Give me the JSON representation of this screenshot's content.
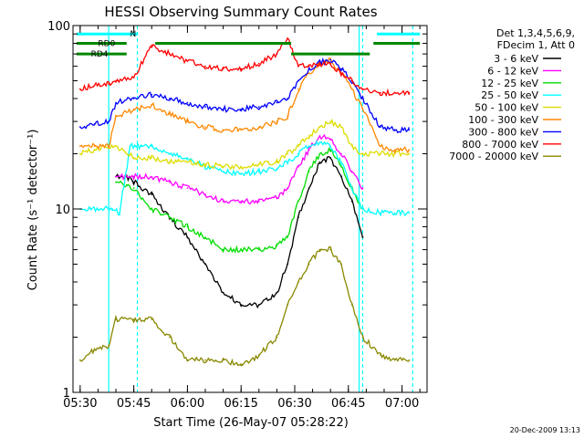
{
  "chart_data": {
    "type": "line",
    "title": "HESSI Observing Summary Count Rates",
    "xlabel": "Start Time (26-May-07 05:28:22)",
    "ylabel": "Count Rate (s⁻¹ detector⁻¹)",
    "footer_date": "20-Dec-2009 13:13",
    "y_scale": "log",
    "xlim": [
      "05:28",
      "07:07"
    ],
    "ylim": [
      1,
      100
    ],
    "x_ticks": [
      "05:30",
      "05:45",
      "06:00",
      "06:15",
      "06:30",
      "06:45",
      "07:00"
    ],
    "y_ticks": [
      "1",
      "10",
      "100"
    ],
    "legend_placement": "right",
    "legend_header": [
      "Det 1,3,4,5,6,9,",
      "FDecim 1, Att 0"
    ],
    "series": [
      {
        "name": "3 - 6 keV",
        "color": "#000000",
        "points": [
          [
            "05:40",
            15
          ],
          [
            "05:43",
            15
          ],
          [
            "05:45",
            14
          ],
          [
            "05:50",
            12
          ],
          [
            "05:55",
            9
          ],
          [
            "06:00",
            7
          ],
          [
            "06:05",
            5
          ],
          [
            "06:10",
            3.5
          ],
          [
            "06:15",
            3
          ],
          [
            "06:20",
            3
          ],
          [
            "06:25",
            3.5
          ],
          [
            "06:28",
            5
          ],
          [
            "06:31",
            9
          ],
          [
            "06:34",
            13
          ],
          [
            "06:37",
            18
          ],
          [
            "06:40",
            19
          ],
          [
            "06:43",
            15
          ],
          [
            "06:46",
            11
          ],
          [
            "06:49",
            7
          ]
        ]
      },
      {
        "name": "6 - 12 keV",
        "color": "#ff00ff",
        "points": [
          [
            "05:40",
            15
          ],
          [
            "05:45",
            15
          ],
          [
            "05:50",
            15
          ],
          [
            "05:55",
            14
          ],
          [
            "06:00",
            13
          ],
          [
            "06:05",
            12
          ],
          [
            "06:10",
            11
          ],
          [
            "06:15",
            11
          ],
          [
            "06:20",
            11
          ],
          [
            "06:25",
            11.5
          ],
          [
            "06:28",
            13
          ],
          [
            "06:31",
            17
          ],
          [
            "06:34",
            21
          ],
          [
            "06:37",
            25
          ],
          [
            "06:40",
            24
          ],
          [
            "06:43",
            20
          ],
          [
            "06:46",
            16
          ],
          [
            "06:49",
            13
          ]
        ]
      },
      {
        "name": "12 - 25 keV",
        "color": "#00dd00",
        "points": [
          [
            "05:40",
            14
          ],
          [
            "05:43",
            13.5
          ],
          [
            "05:45",
            13
          ],
          [
            "05:50",
            10
          ],
          [
            "05:55",
            9
          ],
          [
            "06:00",
            8
          ],
          [
            "06:05",
            7
          ],
          [
            "06:10",
            6
          ],
          [
            "06:15",
            6
          ],
          [
            "06:20",
            6
          ],
          [
            "06:25",
            6.3
          ],
          [
            "06:28",
            7
          ],
          [
            "06:31",
            11
          ],
          [
            "06:34",
            16
          ],
          [
            "06:37",
            20
          ],
          [
            "06:40",
            21
          ],
          [
            "06:43",
            17
          ],
          [
            "06:46",
            13
          ],
          [
            "06:49",
            10
          ]
        ]
      },
      {
        "name": "25 - 50 keV",
        "color": "#00ffff",
        "points": [
          [
            "05:30",
            10
          ],
          [
            "05:33",
            10
          ],
          [
            "05:36",
            10
          ],
          [
            "05:39",
            10
          ],
          [
            "05:41",
            9.5
          ],
          [
            "05:44",
            22
          ],
          [
            "05:47",
            22
          ],
          [
            "05:50",
            22
          ],
          [
            "05:55",
            20
          ],
          [
            "06:00",
            19
          ],
          [
            "06:05",
            17
          ],
          [
            "06:10",
            16
          ],
          [
            "06:15",
            15.5
          ],
          [
            "06:20",
            16
          ],
          [
            "06:25",
            16.5
          ],
          [
            "06:28",
            18
          ],
          [
            "06:31",
            20
          ],
          [
            "06:34",
            22
          ],
          [
            "06:37",
            23
          ],
          [
            "06:40",
            22
          ],
          [
            "06:43",
            18
          ],
          [
            "06:46",
            13
          ],
          [
            "06:49",
            10
          ],
          [
            "06:54",
            9.5
          ],
          [
            "06:58",
            9.5
          ],
          [
            "07:02",
            9.5
          ]
        ]
      },
      {
        "name": "50 - 100 keV",
        "color": "#dddd00",
        "points": [
          [
            "05:30",
            20
          ],
          [
            "05:34",
            21
          ],
          [
            "05:38",
            22
          ],
          [
            "05:40",
            22
          ],
          [
            "05:45",
            19
          ],
          [
            "05:50",
            19
          ],
          [
            "05:55",
            18
          ],
          [
            "06:00",
            18
          ],
          [
            "06:05",
            17.5
          ],
          [
            "06:10",
            17
          ],
          [
            "06:15",
            17
          ],
          [
            "06:20",
            17.5
          ],
          [
            "06:25",
            18
          ],
          [
            "06:28",
            20
          ],
          [
            "06:31",
            22
          ],
          [
            "06:34",
            25
          ],
          [
            "06:37",
            28
          ],
          [
            "06:40",
            30
          ],
          [
            "06:43",
            28
          ],
          [
            "06:46",
            22
          ],
          [
            "06:49",
            20
          ],
          [
            "06:54",
            20
          ],
          [
            "06:58",
            20
          ],
          [
            "07:02",
            20
          ]
        ]
      },
      {
        "name": "100 - 300 keV",
        "color": "#ff8800",
        "points": [
          [
            "05:30",
            22
          ],
          [
            "05:34",
            22
          ],
          [
            "05:38",
            22
          ],
          [
            "05:40",
            32
          ],
          [
            "05:45",
            35
          ],
          [
            "05:50",
            37
          ],
          [
            "05:55",
            33
          ],
          [
            "06:00",
            30
          ],
          [
            "06:05",
            28
          ],
          [
            "06:10",
            27
          ],
          [
            "06:15",
            27
          ],
          [
            "06:20",
            28
          ],
          [
            "06:25",
            30
          ],
          [
            "06:28",
            32
          ],
          [
            "06:31",
            45
          ],
          [
            "06:34",
            55
          ],
          [
            "06:37",
            62
          ],
          [
            "06:40",
            65
          ],
          [
            "06:43",
            55
          ],
          [
            "06:46",
            45
          ],
          [
            "06:49",
            35
          ],
          [
            "06:54",
            22
          ],
          [
            "06:58",
            21
          ],
          [
            "07:02",
            21
          ]
        ]
      },
      {
        "name": "300 - 800 keV",
        "color": "#0000ff",
        "points": [
          [
            "05:30",
            28
          ],
          [
            "05:34",
            29
          ],
          [
            "05:38",
            30
          ],
          [
            "05:40",
            38
          ],
          [
            "05:45",
            40
          ],
          [
            "05:50",
            42
          ],
          [
            "05:55",
            40
          ],
          [
            "06:00",
            38
          ],
          [
            "06:05",
            36
          ],
          [
            "06:10",
            35
          ],
          [
            "06:15",
            35
          ],
          [
            "06:20",
            36
          ],
          [
            "06:25",
            38
          ],
          [
            "06:28",
            40
          ],
          [
            "06:31",
            50
          ],
          [
            "06:34",
            58
          ],
          [
            "06:37",
            63
          ],
          [
            "06:40",
            65
          ],
          [
            "06:43",
            58
          ],
          [
            "06:46",
            50
          ],
          [
            "06:49",
            40
          ],
          [
            "06:54",
            28
          ],
          [
            "06:58",
            27
          ],
          [
            "07:02",
            27
          ]
        ]
      },
      {
        "name": "800 - 7000 keV",
        "color": "#ff0000",
        "points": [
          [
            "05:30",
            45
          ],
          [
            "05:34",
            47
          ],
          [
            "05:38",
            48
          ],
          [
            "05:40",
            50
          ],
          [
            "05:45",
            52
          ],
          [
            "05:50",
            78
          ],
          [
            "05:55",
            70
          ],
          [
            "06:00",
            64
          ],
          [
            "06:05",
            60
          ],
          [
            "06:10",
            58
          ],
          [
            "06:15",
            58
          ],
          [
            "06:20",
            62
          ],
          [
            "06:25",
            70
          ],
          [
            "06:28",
            85
          ],
          [
            "06:31",
            60
          ],
          [
            "06:34",
            60
          ],
          [
            "06:37",
            62
          ],
          [
            "06:40",
            62
          ],
          [
            "06:43",
            55
          ],
          [
            "06:46",
            50
          ],
          [
            "06:49",
            45
          ],
          [
            "06:54",
            43
          ],
          [
            "06:58",
            43
          ],
          [
            "07:02",
            43
          ]
        ]
      },
      {
        "name": "7000 - 20000 keV",
        "color": "#888800",
        "points": [
          [
            "05:30",
            1.5
          ],
          [
            "05:34",
            1.7
          ],
          [
            "05:38",
            1.8
          ],
          [
            "05:40",
            2.5
          ],
          [
            "05:45",
            2.5
          ],
          [
            "05:50",
            2.5
          ],
          [
            "05:55",
            2.0
          ],
          [
            "06:00",
            1.5
          ],
          [
            "06:05",
            1.5
          ],
          [
            "06:10",
            1.5
          ],
          [
            "06:15",
            1.4
          ],
          [
            "06:20",
            1.6
          ],
          [
            "06:25",
            2.0
          ],
          [
            "06:28",
            3.0
          ],
          [
            "06:31",
            4.0
          ],
          [
            "06:34",
            5.0
          ],
          [
            "06:37",
            6.0
          ],
          [
            "06:40",
            6.0
          ],
          [
            "06:43",
            5.0
          ],
          [
            "06:46",
            3.0
          ],
          [
            "06:49",
            2.0
          ],
          [
            "06:54",
            1.6
          ],
          [
            "06:58",
            1.5
          ],
          [
            "07:02",
            1.5
          ]
        ]
      }
    ],
    "annotations": [
      {
        "label": "N",
        "color": "#00ffff",
        "x_start": "05:29",
        "x_end": "05:46",
        "y": 90
      },
      {
        "label": "RD0",
        "color": "#008800",
        "x_start": "05:29",
        "x_end": "05:43",
        "y": 80
      },
      {
        "label": "RD4",
        "color": "#008800",
        "x_start": "05:29",
        "x_end": "05:43",
        "y": 70
      },
      {
        "label": "",
        "color": "#008800",
        "x_start": "05:51",
        "x_end": "06:29",
        "y": 80
      },
      {
        "label": "",
        "color": "#008800",
        "x_start": "06:29",
        "x_end": "06:51",
        "y": 70
      },
      {
        "label": "",
        "color": "#008800",
        "x_start": "06:52",
        "x_end": "07:05",
        "y": 80
      },
      {
        "label": "",
        "color": "#00ffff",
        "x_start": "06:53",
        "x_end": "07:05",
        "y": 90
      }
    ],
    "vertical_markers": [
      {
        "x": "05:38",
        "color": "#00ffff",
        "style": "solid"
      },
      {
        "x": "05:46",
        "color": "#00ffff",
        "style": "dashed"
      },
      {
        "x": "06:48",
        "color": "#00ffff",
        "style": "solid"
      },
      {
        "x": "06:49",
        "color": "#00ffff",
        "style": "dashed"
      },
      {
        "x": "07:03",
        "color": "#00ffff",
        "style": "dashed"
      }
    ]
  }
}
